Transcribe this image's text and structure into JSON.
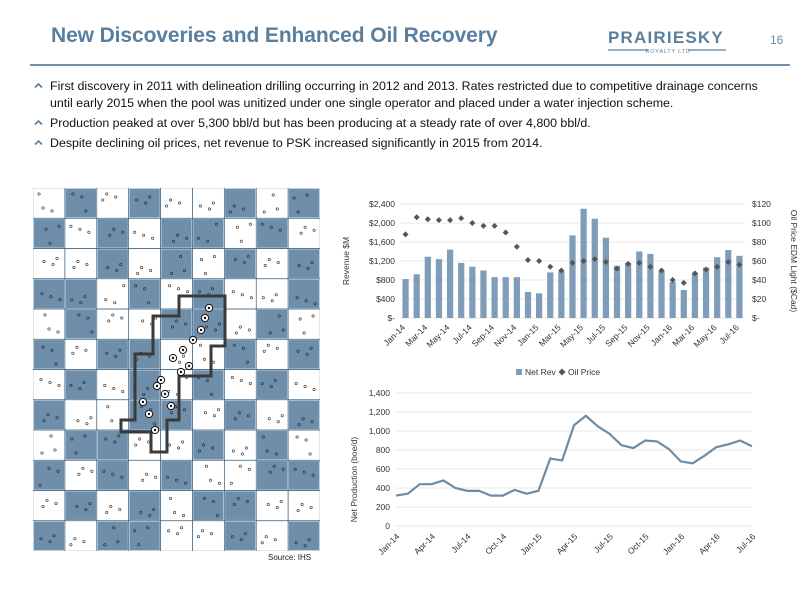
{
  "header": {
    "title": "New Discoveries and Enhanced Oil Recovery",
    "page_number": "16",
    "logo_text_1": "PRAIRIESKY",
    "logo_text_2": "ROYALTY LTD"
  },
  "bullets": [
    "First discovery in 2011 with delineation drilling occurring in 2012 and 2013. Rates restricted due to competitive drainage concerns until early 2015 when the pool was unitized under one single operator and placed under a water injection scheme.",
    "Production peaked at over 5,300 bbl/d but has been producing at a steady rate of over 4,800 bbl/d.",
    "Despite declining oil prices, net revenue to PSK increased significantly in 2015 from 2014."
  ],
  "map": {
    "source": "Source: IHS"
  },
  "colors": {
    "accent": "#6f93b3",
    "bar": "#7f9db9",
    "line": "#6f8aa6",
    "marker": "#555555",
    "title": "#5a7f9e"
  },
  "chart_data": [
    {
      "type": "bar",
      "categories": [
        "Jan-14",
        "Feb-14",
        "Mar-14",
        "Apr-14",
        "May-14",
        "Jun-14",
        "Jul-14",
        "Aug-14",
        "Sep-14",
        "Oct-14",
        "Nov-14",
        "Dec-14",
        "Jan-15",
        "Feb-15",
        "Mar-15",
        "Apr-15",
        "May-15",
        "Jun-15",
        "Jul-15",
        "Aug-15",
        "Sep-15",
        "Oct-15",
        "Nov-15",
        "Dec-15",
        "Jan-16",
        "Feb-16",
        "Mar-16",
        "Apr-16",
        "May-16",
        "Jun-16",
        "Jul-16"
      ],
      "x_tick_labels": [
        "Jan-14",
        "Mar-14",
        "May-14",
        "Jul-14",
        "Sep-14",
        "Nov-14",
        "Jan-15",
        "Mar-15",
        "May-15",
        "Jul-15",
        "Sep-15",
        "Nov-15",
        "Jan-16",
        "Mar-16",
        "May-16",
        "Jul-16"
      ],
      "series": [
        {
          "name": "Net Rev",
          "kind": "bar",
          "axis": "left",
          "values": [
            820,
            920,
            1290,
            1240,
            1440,
            1160,
            1080,
            1000,
            860,
            860,
            860,
            550,
            520,
            960,
            980,
            1740,
            2300,
            2090,
            1690,
            1100,
            1160,
            1400,
            1350,
            990,
            760,
            590,
            940,
            1060,
            1280,
            1430,
            1310
          ]
        },
        {
          "name": "Oil Price",
          "kind": "marker",
          "axis": "right",
          "values": [
            88,
            106,
            104,
            103,
            103,
            105,
            100,
            97,
            97,
            90,
            75,
            61,
            60,
            54,
            50,
            58,
            60,
            62,
            59,
            52,
            57,
            58,
            54,
            50,
            40,
            37,
            47,
            51,
            54,
            59,
            56
          ]
        }
      ],
      "ylabel": "Revenue $M",
      "ylabel_right": "Oil Price EDM Light ($Cad)",
      "ylim": [
        0,
        2400
      ],
      "ylim_right": [
        0,
        120
      ],
      "yticks": [
        "$-",
        "$400",
        "$800",
        "$1,200",
        "$1,600",
        "$2,000",
        "$2,400"
      ],
      "yticks_right": [
        "$-",
        "$20",
        "$40",
        "$60",
        "$80",
        "$100",
        "$120"
      ],
      "legend": [
        "Net Rev",
        "Oil Price"
      ],
      "legend_position": "bottom",
      "grid": true
    },
    {
      "type": "line",
      "x": [
        "Jan-14",
        "Feb-14",
        "Mar-14",
        "Apr-14",
        "May-14",
        "Jun-14",
        "Jul-14",
        "Aug-14",
        "Sep-14",
        "Oct-14",
        "Nov-14",
        "Dec-14",
        "Jan-15",
        "Feb-15",
        "Mar-15",
        "Apr-15",
        "May-15",
        "Jun-15",
        "Jul-15",
        "Aug-15",
        "Sep-15",
        "Oct-15",
        "Nov-15",
        "Dec-15",
        "Jan-16",
        "Feb-16",
        "Mar-16",
        "Apr-16",
        "May-16",
        "Jun-16",
        "Jul-16"
      ],
      "x_tick_labels": [
        "Jan-14",
        "Apr-14",
        "Jul-14",
        "Oct-14",
        "Jan-15",
        "Apr-15",
        "Jul-15",
        "Oct-15",
        "Jan-16",
        "Apr-16",
        "Jul-16"
      ],
      "values": [
        320,
        340,
        440,
        440,
        480,
        400,
        370,
        370,
        320,
        320,
        380,
        340,
        370,
        710,
        690,
        1060,
        1160,
        1050,
        970,
        850,
        820,
        900,
        890,
        810,
        680,
        660,
        740,
        830,
        860,
        900,
        840
      ],
      "ylabel": "Net Production (boe/d)",
      "ylim": [
        0,
        1400
      ],
      "yticks": [
        "0",
        "200",
        "400",
        "600",
        "800",
        "1,000",
        "1,200",
        "1,400"
      ],
      "grid": true
    }
  ]
}
